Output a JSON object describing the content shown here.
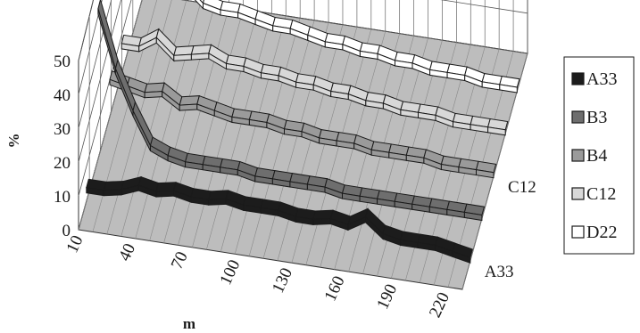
{
  "chart_data": {
    "type": "line",
    "style": "3d-ribbon",
    "title": "",
    "xlabel": "m",
    "ylabel": "%",
    "ylim": [
      0,
      50
    ],
    "y_ticks": [
      "0",
      "10",
      "20",
      "30",
      "40",
      "50"
    ],
    "x_ticks": [
      "10",
      "40",
      "70",
      "100",
      "130",
      "160",
      "190",
      "220"
    ],
    "depth_ticks": [
      "A33",
      "C12"
    ],
    "grid": true,
    "legend_position": "right",
    "x": [
      10,
      20,
      30,
      40,
      50,
      60,
      70,
      80,
      90,
      100,
      110,
      120,
      130,
      140,
      150,
      160,
      170,
      180,
      190,
      200,
      210,
      220,
      230
    ],
    "series": [
      {
        "name": "A33",
        "color": "#1c1c1c",
        "values": [
          4,
          4,
          5,
          7,
          6,
          7,
          6,
          6,
          7,
          6,
          6,
          6,
          5,
          5,
          6,
          5,
          8,
          4,
          3,
          3,
          3,
          2,
          1
        ]
      },
      {
        "name": "B3",
        "color": "#6e6e6e",
        "values": [
          42,
          26,
          15,
          6,
          4,
          3,
          3,
          3,
          3,
          2,
          2,
          2,
          2,
          2,
          1,
          1,
          1,
          1,
          1,
          1,
          1,
          1,
          1
        ]
      },
      {
        "name": "B4",
        "color": "#9a9a9a",
        "values": [
          10,
          9,
          8,
          9,
          6,
          7,
          6,
          5,
          5,
          5,
          4,
          4,
          3,
          3,
          3,
          2,
          2,
          2,
          2,
          1,
          1,
          1,
          1
        ]
      },
      {
        "name": "C12",
        "color": "#d8d8d8",
        "values": [
          8,
          8,
          11,
          7,
          8,
          9,
          7,
          7,
          6,
          6,
          5,
          5,
          4,
          4,
          3,
          3,
          2,
          2,
          2,
          1,
          1,
          1,
          1
        ]
      },
      {
        "name": "D22",
        "color": "#ffffff",
        "values": [
          46,
          28,
          21,
          14,
          10,
          9,
          9,
          8,
          7,
          7,
          6,
          5,
          5,
          4,
          4,
          3,
          3,
          2,
          2,
          2,
          1,
          1,
          1
        ]
      }
    ]
  }
}
